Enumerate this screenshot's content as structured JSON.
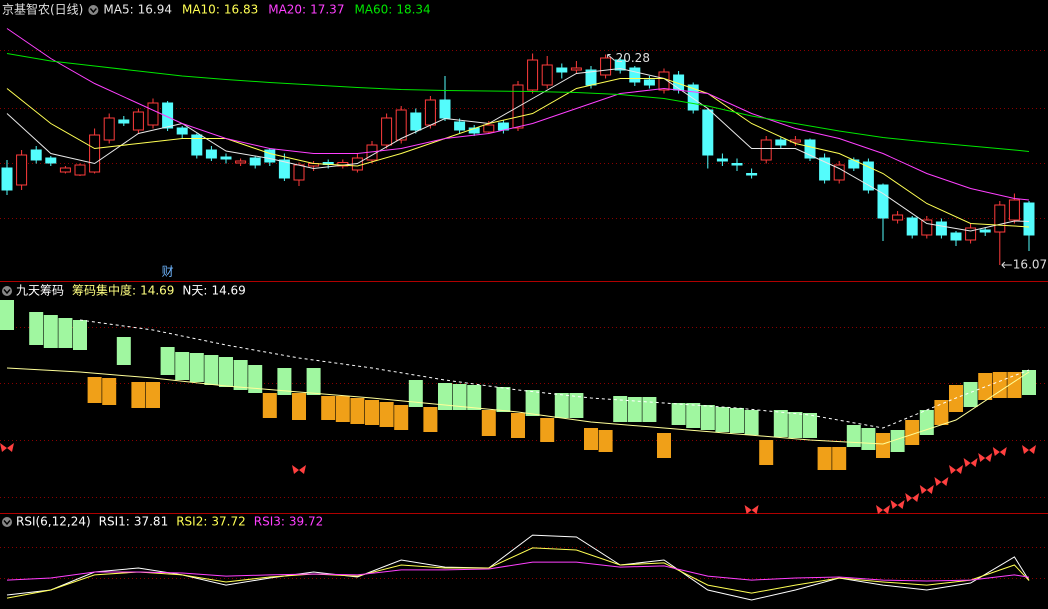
{
  "chart_data": [
    {
      "type": "candlestick",
      "title": "京基智农(日线)",
      "up_color": "#ff3c3c",
      "down_color": "#54fcfc",
      "ylim": [
        15.97,
        21.37
      ],
      "open": [
        18.01,
        17.67,
        18.37,
        18.21,
        17.93,
        17.87,
        17.93,
        18.57,
        18.97,
        18.77,
        18.87,
        19.31,
        18.81,
        18.67,
        18.37,
        18.23,
        18.11,
        18.21,
        18.37,
        18.17,
        17.77,
        18.05,
        18.12,
        18.05,
        17.97,
        18.17,
        18.47,
        18.57,
        19.11,
        18.87,
        19.37,
        18.93,
        18.81,
        18.73,
        18.91,
        18.81,
        19.57,
        19.67,
        20.01,
        19.97,
        19.97,
        19.87,
        20.17,
        20.01,
        19.77,
        19.57,
        19.87,
        19.67,
        19.17,
        18.19,
        18.1,
        17.9,
        18.17,
        18.57,
        18.53,
        18.57,
        18.21,
        17.77,
        18.17,
        18.13,
        17.67,
        16.97,
        17.01,
        16.67,
        16.93,
        16.71,
        16.57,
        16.77,
        16.73,
        16.97,
        17.31
      ],
      "close": [
        17.57,
        18.27,
        18.17,
        18.11,
        18.01,
        18.07,
        18.67,
        19.01,
        18.91,
        19.13,
        19.31,
        18.81,
        18.69,
        18.27,
        18.21,
        18.19,
        18.15,
        18.07,
        18.13,
        17.81,
        18.07,
        18.1,
        18.08,
        18.12,
        18.21,
        18.47,
        19.01,
        19.17,
        18.77,
        19.37,
        19.01,
        18.77,
        18.71,
        18.87,
        18.77,
        19.67,
        20.17,
        20.07,
        19.93,
        20.01,
        19.67,
        20.21,
        19.97,
        19.73,
        19.67,
        19.93,
        19.57,
        19.17,
        18.27,
        18.15,
        18.07,
        17.87,
        18.57,
        18.47,
        18.57,
        18.21,
        17.77,
        18.07,
        18.01,
        17.57,
        17.01,
        17.07,
        16.67,
        16.97,
        16.67,
        16.57,
        16.81,
        16.73,
        17.27,
        17.37,
        16.67
      ],
      "high": [
        18.17,
        18.37,
        18.45,
        18.25,
        18.05,
        18.1,
        18.8,
        19.1,
        19.05,
        19.2,
        19.4,
        19.35,
        18.85,
        18.7,
        18.45,
        18.3,
        18.2,
        18.25,
        18.4,
        18.3,
        18.12,
        18.15,
        18.18,
        18.18,
        18.3,
        18.55,
        19.1,
        19.25,
        19.2,
        19.45,
        19.85,
        19.0,
        18.87,
        18.95,
        18.97,
        19.75,
        20.3,
        20.25,
        20.1,
        20.15,
        20.05,
        20.28,
        20.22,
        20.05,
        19.85,
        20.0,
        19.95,
        19.72,
        19.2,
        18.3,
        18.2,
        18.0,
        18.65,
        18.62,
        18.65,
        18.6,
        18.3,
        18.15,
        18.22,
        18.2,
        17.7,
        17.15,
        17.05,
        17.05,
        17.0,
        16.75,
        16.9,
        16.82,
        17.35,
        17.5,
        17.35
      ],
      "low": [
        17.47,
        17.57,
        18.1,
        18.05,
        17.9,
        17.85,
        17.9,
        18.5,
        18.85,
        18.7,
        18.8,
        18.75,
        18.6,
        18.2,
        18.15,
        18.1,
        18.05,
        18.0,
        18.05,
        17.75,
        17.65,
        17.95,
        18.0,
        18.0,
        17.92,
        18.1,
        18.4,
        18.5,
        18.7,
        18.8,
        18.95,
        18.7,
        18.65,
        18.7,
        18.7,
        18.75,
        19.5,
        19.6,
        19.8,
        19.9,
        19.6,
        19.8,
        19.9,
        19.65,
        19.6,
        19.5,
        19.5,
        19.1,
        18.0,
        18.05,
        17.95,
        17.8,
        18.1,
        18.4,
        18.45,
        18.15,
        17.7,
        17.7,
        17.95,
        17.5,
        16.55,
        16.9,
        16.6,
        16.6,
        16.6,
        16.45,
        16.5,
        16.65,
        16.07,
        16.9,
        16.35
      ],
      "line_x": [
        0,
        3,
        6,
        9,
        12,
        15,
        18,
        21,
        24,
        27,
        30,
        33,
        36,
        39,
        42,
        45,
        48,
        51,
        54,
        57,
        60,
        63,
        66,
        69,
        70
      ],
      "series": [
        {
          "name": "MA5:",
          "last": 16.94,
          "color": "#e8e8e8",
          "values": [
            19.1,
            18.3,
            18.1,
            18.7,
            18.9,
            18.35,
            18.2,
            18.0,
            18.1,
            18.6,
            19.0,
            18.9,
            19.4,
            19.9,
            20.0,
            19.8,
            19.2,
            18.4,
            18.4,
            18.0,
            17.5,
            16.9,
            16.75,
            16.95,
            16.94
          ]
        },
        {
          "name": "MA10:",
          "last": 16.83,
          "color": "#ffff54",
          "values": [
            19.6,
            18.9,
            18.4,
            18.5,
            18.6,
            18.6,
            18.3,
            18.1,
            18.05,
            18.3,
            18.6,
            18.9,
            19.1,
            19.6,
            19.8,
            19.8,
            19.5,
            18.9,
            18.5,
            18.3,
            17.9,
            17.3,
            16.9,
            16.85,
            16.83
          ]
        },
        {
          "name": "MA20:",
          "last": 17.37,
          "color": "#ff40ff",
          "values": [
            20.8,
            20.2,
            19.7,
            19.3,
            18.9,
            18.6,
            18.4,
            18.3,
            18.3,
            18.4,
            18.6,
            18.7,
            18.9,
            19.2,
            19.5,
            19.6,
            19.5,
            19.1,
            18.8,
            18.6,
            18.3,
            17.9,
            17.6,
            17.4,
            17.37
          ]
        },
        {
          "name": "MA60:",
          "last": 18.34,
          "color": "#00e600",
          "values": [
            20.3,
            20.15,
            20.05,
            19.95,
            19.85,
            19.78,
            19.72,
            19.67,
            19.62,
            19.58,
            19.56,
            19.55,
            19.54,
            19.52,
            19.48,
            19.4,
            19.25,
            19.05,
            18.9,
            18.75,
            18.62,
            18.53,
            18.45,
            18.37,
            18.34
          ]
        }
      ],
      "annotations": [
        {
          "text": 20.28,
          "index": 41
        },
        {
          "text": 16.07,
          "index": 68
        },
        {
          "text": "财",
          "index": 11
        }
      ]
    },
    {
      "type": "box",
      "title": "九天筹码",
      "ylim": [
        0,
        230
      ],
      "legend": [
        {
          "name": "筹码集中度:",
          "value": 14.69,
          "color": "#ffff80"
        },
        {
          "name": "N天:",
          "value": 14.69,
          "color": "#ffffff"
        }
      ],
      "boxes": [
        {
          "color": "#a0f7a0",
          "top": [
            212,
            null,
            200,
            197,
            194,
            192,
            null,
            null,
            175,
            null,
            null,
            165,
            160,
            159,
            157,
            155,
            152,
            147,
            null,
            144,
            null,
            144,
            null,
            null,
            null,
            null,
            null,
            null,
            132,
            null,
            129,
            128,
            127,
            null,
            125,
            null,
            122,
            null,
            119,
            119,
            null,
            null,
            116,
            115,
            115,
            null,
            109,
            109,
            107,
            105,
            104,
            102,
            null,
            102,
            100,
            99,
            null,
            null,
            87,
            84,
            null,
            82,
            null,
            102,
            null,
            null,
            130,
            null,
            null,
            null,
            142
          ],
          "bottom": [
            182,
            null,
            167,
            164,
            164,
            162,
            null,
            null,
            147,
            null,
            null,
            137,
            132,
            130,
            127,
            125,
            122,
            119,
            null,
            117,
            null,
            117,
            null,
            null,
            null,
            null,
            null,
            null,
            105,
            null,
            102,
            102,
            102,
            null,
            100,
            null,
            96,
            null,
            94,
            94,
            null,
            null,
            90,
            90,
            90,
            null,
            87,
            84,
            82,
            80,
            79,
            77,
            null,
            75,
            74,
            74,
            null,
            null,
            65,
            62,
            null,
            60,
            null,
            77,
            null,
            null,
            105,
            null,
            null,
            null,
            117
          ]
        },
        {
          "color": "#f0a018",
          "top": [
            null,
            null,
            null,
            null,
            null,
            null,
            135,
            134,
            null,
            130,
            130,
            null,
            null,
            null,
            null,
            null,
            null,
            null,
            119,
            null,
            119,
            null,
            116,
            116,
            114,
            112,
            110,
            107,
            null,
            105,
            null,
            null,
            null,
            102,
            null,
            99,
            null,
            94,
            null,
            null,
            84,
            82,
            null,
            null,
            null,
            79,
            null,
            null,
            null,
            null,
            null,
            null,
            72,
            null,
            null,
            null,
            65,
            65,
            null,
            null,
            79,
            null,
            92,
            null,
            112,
            127,
            null,
            139,
            140,
            140,
            null
          ],
          "bottom": [
            null,
            null,
            null,
            null,
            null,
            null,
            109,
            107,
            null,
            104,
            104,
            null,
            null,
            null,
            null,
            null,
            null,
            null,
            94,
            null,
            92,
            null,
            92,
            90,
            88,
            87,
            85,
            82,
            null,
            80,
            null,
            null,
            null,
            76,
            null,
            74,
            null,
            70,
            null,
            null,
            62,
            60,
            null,
            null,
            null,
            54,
            null,
            null,
            null,
            null,
            null,
            null,
            47,
            null,
            null,
            null,
            42,
            42,
            null,
            null,
            54,
            null,
            67,
            null,
            87,
            100,
            null,
            112,
            114,
            114,
            null
          ]
        }
      ],
      "line_x": [
        0,
        5,
        10,
        15,
        20,
        25,
        30,
        35,
        40,
        45,
        50,
        55,
        60,
        65,
        70
      ],
      "lines": [
        {
          "color": "#ffffff",
          "dashed": true,
          "values": [
            null,
            192,
            182,
            167,
            154,
            144,
            132,
            122,
            114,
            109,
            104,
            97,
            84,
            114,
            142
          ]
        },
        {
          "color": "#ffff99",
          "dashed": false,
          "values": [
            144,
            140,
            134,
            126,
            120,
            114,
            107,
            100,
            90,
            84,
            78,
            72,
            68,
            92,
            140
          ]
        }
      ],
      "markers": {
        "color": "#ff4040",
        "x": [
          0,
          20,
          51,
          60,
          61,
          62,
          63,
          64,
          65,
          66,
          67,
          68,
          70
        ],
        "values": [
          64,
          42,
          2,
          2,
          7,
          14,
          22,
          30,
          42,
          49,
          54,
          60,
          62
        ]
      }
    },
    {
      "type": "line",
      "title": "RSI(6,12,24)",
      "ylim": [
        20,
        76
      ],
      "line_x": [
        0,
        3,
        6,
        9,
        12,
        15,
        18,
        21,
        24,
        27,
        30,
        33,
        36,
        39,
        42,
        45,
        48,
        51,
        54,
        57,
        60,
        63,
        66,
        69,
        70
      ],
      "series": [
        {
          "name": "RSI1:",
          "last": 37.81,
          "color": "#ffffff",
          "values": [
            28.7,
            31.8,
            43.0,
            45.5,
            41.2,
            34.9,
            39.3,
            43.0,
            39.9,
            50.5,
            46.1,
            45.5,
            66.0,
            64.8,
            47.4,
            50.5,
            31.8,
            25.6,
            31.8,
            39.3,
            34.9,
            31.8,
            36.2,
            52.4,
            37.81
          ]
        },
        {
          "name": "RSI2:",
          "last": 37.72,
          "color": "#ffff54",
          "values": [
            26.8,
            31.8,
            41.2,
            43.0,
            41.2,
            36.8,
            39.9,
            41.8,
            40.5,
            47.4,
            45.5,
            45.5,
            58.0,
            56.7,
            47.4,
            48.7,
            34.9,
            29.9,
            34.9,
            39.3,
            36.8,
            34.9,
            38.0,
            47.4,
            37.72
          ]
        },
        {
          "name": "RSI3:",
          "last": 39.72,
          "color": "#ff40ff",
          "values": [
            38.0,
            39.3,
            43.0,
            43.0,
            42.4,
            40.5,
            41.2,
            41.8,
            41.2,
            44.3,
            44.3,
            44.9,
            49.2,
            49.2,
            46.1,
            46.8,
            40.5,
            38.0,
            39.3,
            39.9,
            38.0,
            37.4,
            38.0,
            41.2,
            39.72
          ]
        }
      ]
    }
  ]
}
